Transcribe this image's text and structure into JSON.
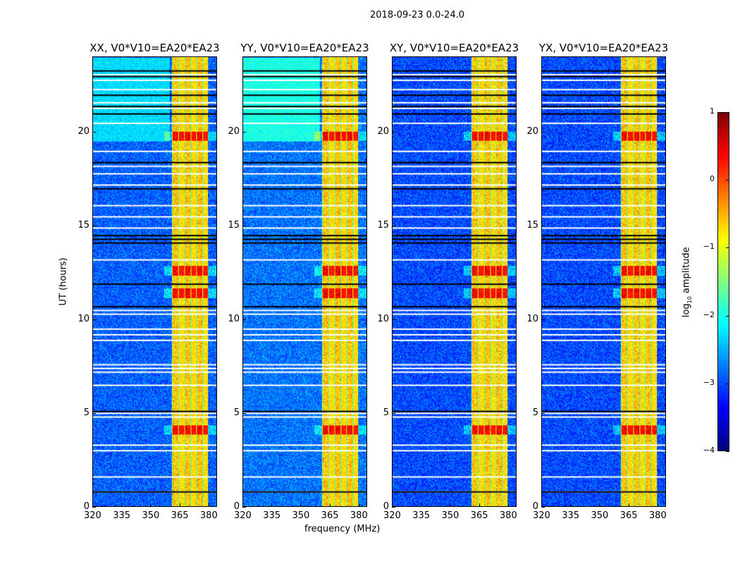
{
  "chart_data": {
    "type": "heatmap",
    "suptitle": "2018-09-23 0.0-24.0",
    "xlabel": "frequency (MHz)",
    "ylabel": "UT (hours)",
    "xlim": [
      320,
      384.4
    ],
    "ylim": [
      0,
      24
    ],
    "xticks": [
      "320",
      "335",
      "350",
      "365",
      "380"
    ],
    "xtick_values": [
      320,
      335,
      350,
      365,
      380
    ],
    "yticks": [
      "0",
      "5",
      "10",
      "15",
      "20"
    ],
    "ytick_values": [
      0,
      5,
      10,
      15,
      20
    ],
    "panels": [
      {
        "title": "XX, V0*V10=EA20*EA23",
        "background_level": -2.9,
        "low_band_level": -2.3
      },
      {
        "title": "YY, V0*V10=EA20*EA23",
        "background_level": -2.8,
        "low_band_level": -2.0
      },
      {
        "title": "XY, V0*V10=EA20*EA23",
        "background_level": -3.0,
        "low_band_level": -3.0
      },
      {
        "title": "YX, V0*V10=EA20*EA23",
        "background_level": -3.0,
        "low_band_level": -3.0
      }
    ],
    "rfi_band_mhz": [
      361,
      380
    ],
    "rfi_band_level": -0.7,
    "strong_rfi_hours": [
      4.1,
      11.4,
      12.6,
      19.8
    ],
    "flagged_hours_white": [
      0.8,
      1.6,
      3.0,
      3.3,
      4.8,
      5.0,
      6.5,
      7.2,
      7.4,
      7.6,
      8.9,
      9.2,
      9.5,
      10.3,
      10.5,
      13.2,
      14.9,
      15.5,
      16.1,
      17.2,
      17.8,
      18.2,
      19.0,
      20.5,
      21.3,
      21.6,
      22.3,
      22.8,
      23.1
    ],
    "flagged_hours_black": [
      0.8,
      5.1,
      10.7,
      11.9,
      14.1,
      14.3,
      14.5,
      17.0,
      18.4,
      21.0,
      21.4,
      22.0,
      23.0,
      23.3
    ],
    "colorbar": {
      "label": "log10 amplitude",
      "label_main": "log",
      "label_sub": "10",
      "label_rest": " amplitude",
      "range": [
        -4,
        1
      ],
      "ticks": [
        "1",
        "0",
        "−1",
        "−2",
        "−3",
        "−4"
      ],
      "tick_values": [
        1,
        0,
        -1,
        -2,
        -3,
        -4
      ],
      "colormap": "jet"
    }
  }
}
